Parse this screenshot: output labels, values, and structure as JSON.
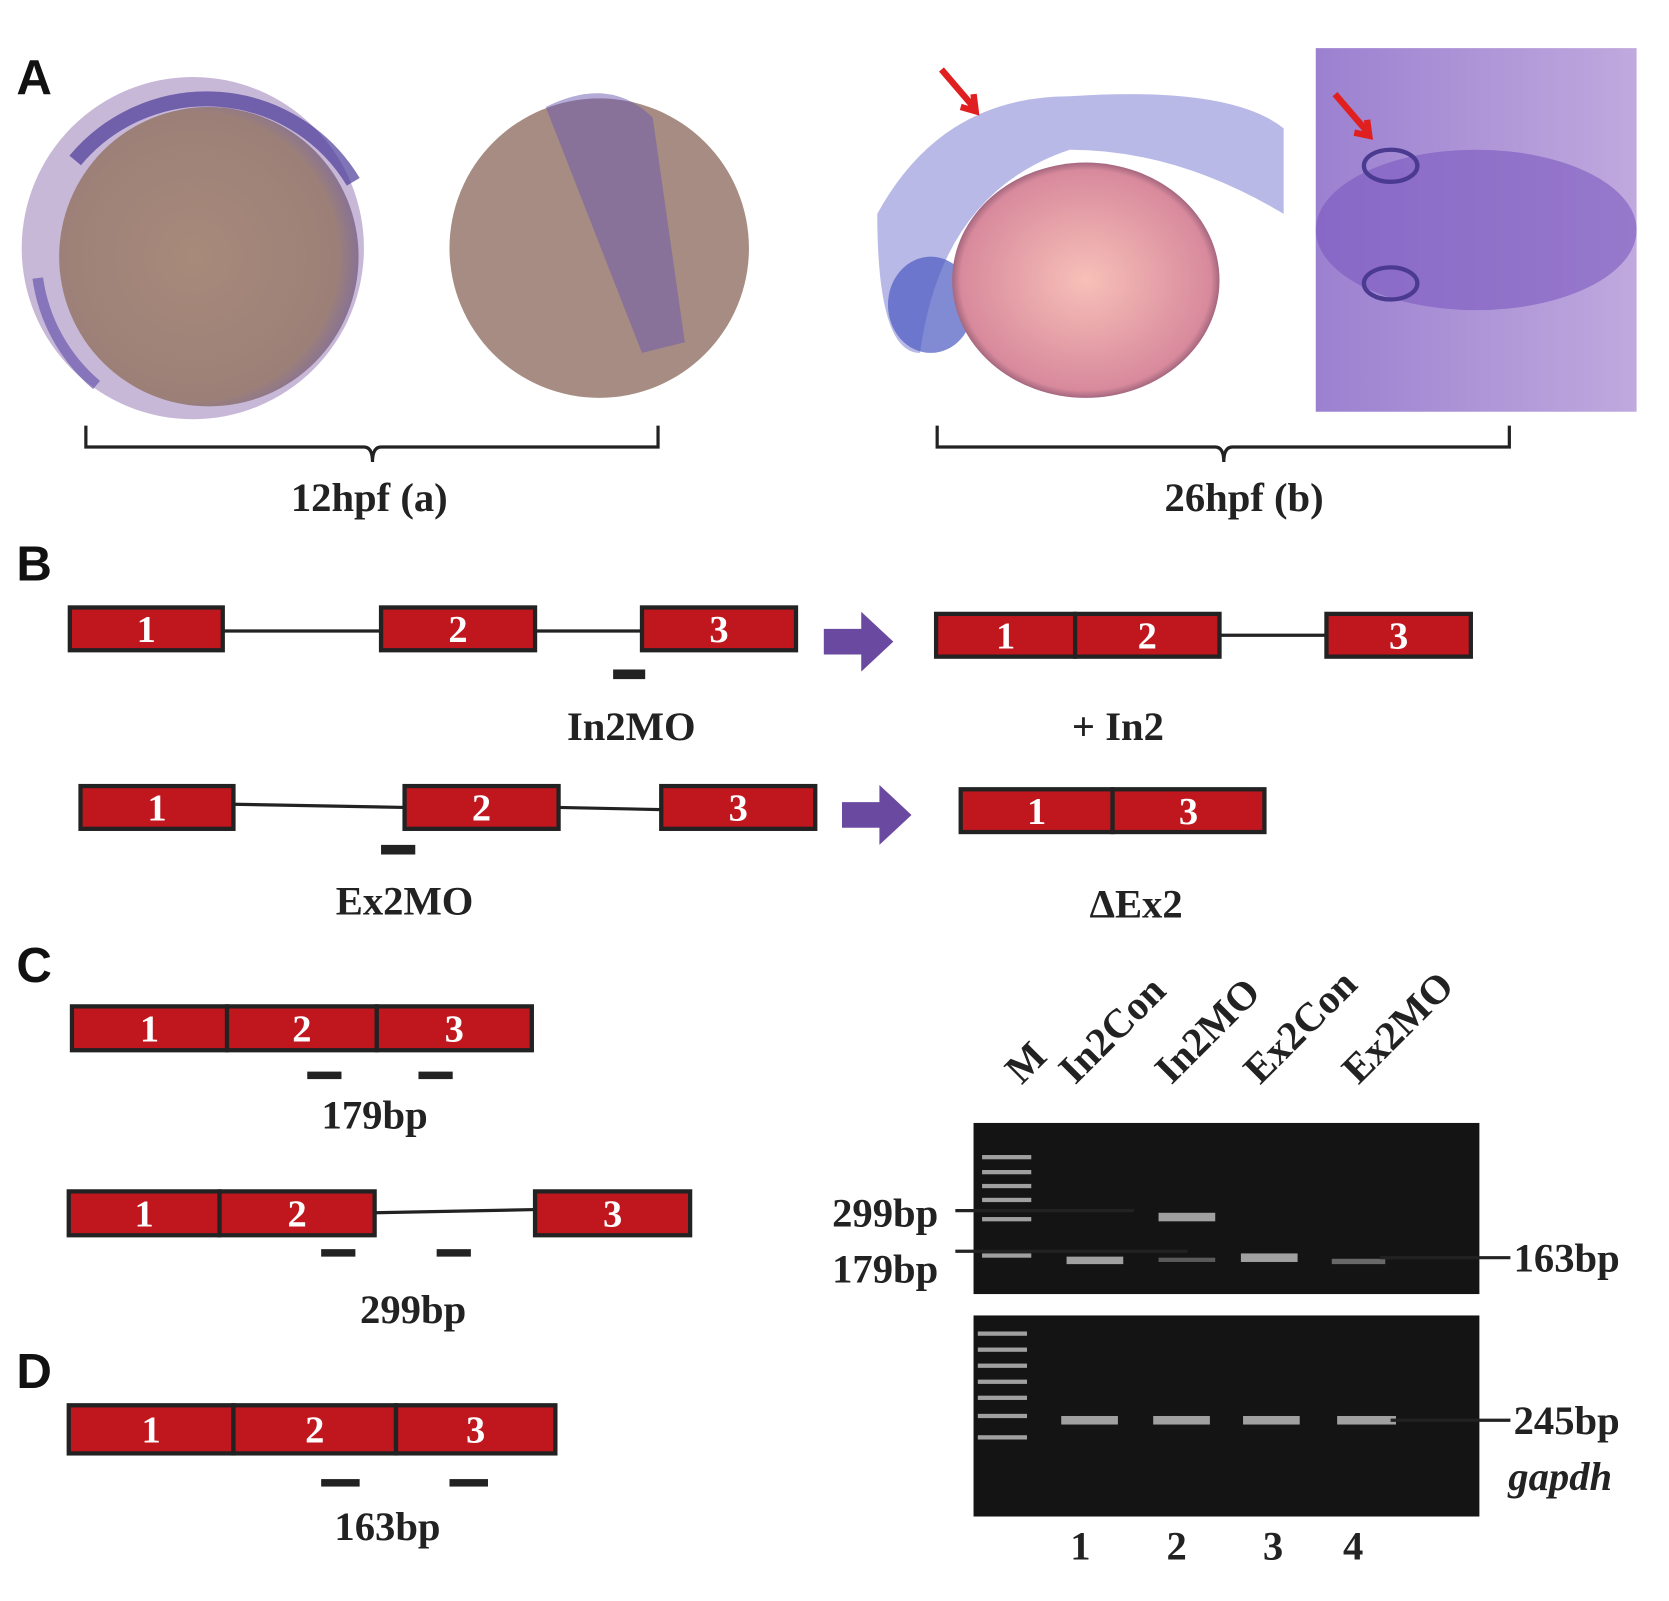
{
  "panel_labels": [
    "A",
    "B",
    "C",
    "D"
  ],
  "panel_a": {
    "captions": [
      "12hpf (a)",
      "26hpf (b)"
    ]
  },
  "panel_b": {
    "rows": [
      {
        "pre_exons": [
          "1",
          "2",
          "3"
        ],
        "morpholino": "In2MO",
        "post_exons": [
          "1",
          "2",
          "3"
        ],
        "result": "+ In2"
      },
      {
        "pre_exons": [
          "1",
          "2",
          "3"
        ],
        "morpholino": "Ex2MO",
        "post_exons": [
          "1",
          "3"
        ],
        "result": "ΔEx2"
      }
    ]
  },
  "panel_c": {
    "diagrams": [
      {
        "exons": [
          "1",
          "2",
          "3"
        ],
        "product": "179bp"
      },
      {
        "exons": [
          "1",
          "2",
          "3"
        ],
        "product": "299bp"
      }
    ]
  },
  "panel_d": {
    "exons": [
      "1",
      "2",
      "3"
    ],
    "product": "163bp"
  },
  "gel": {
    "lanes": [
      "M",
      "In2Con",
      "In2MO",
      "Ex2Con",
      "Ex2MO"
    ],
    "lane_numbers": [
      "1",
      "2",
      "3",
      "4"
    ],
    "left_markers": [
      "299bp",
      "179bp"
    ],
    "right_markers": [
      "163bp",
      "245bp"
    ],
    "gene": "gapdh"
  }
}
